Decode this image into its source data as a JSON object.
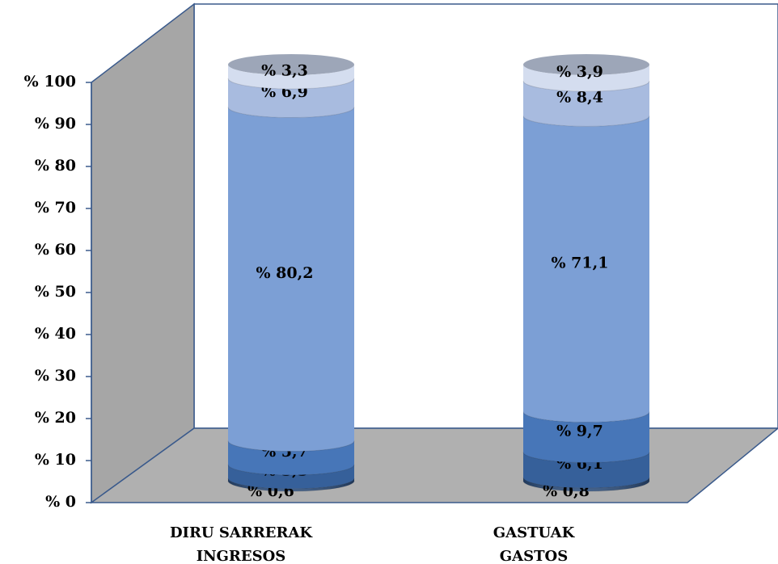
{
  "chart_data": {
    "type": "stacked-cylinder",
    "categories": [
      [
        "DIRU SARRERAK",
        "INGRESOS"
      ],
      [
        "GASTUAK",
        "GASTOS"
      ]
    ],
    "series": [
      {
        "color": "#2b4d7c",
        "values": [
          0.6,
          0.8
        ],
        "value_labels": [
          "% 0,6",
          "% 0,8"
        ]
      },
      {
        "color": "#36609a",
        "values": [
          3.3,
          6.1
        ],
        "value_labels": [
          "% 3,3",
          "% 6,1"
        ]
      },
      {
        "color": "#4776b8",
        "values": [
          5.7,
          9.7
        ],
        "value_labels": [
          "% 5,7",
          "% 9,7"
        ]
      },
      {
        "color": "#7c9fd5",
        "values": [
          80.2,
          71.1
        ],
        "value_labels": [
          "% 80,2",
          "% 71,1"
        ]
      },
      {
        "color": "#a8bbdf",
        "values": [
          6.9,
          8.4
        ],
        "value_labels": [
          "% 6,9",
          "% 8,4"
        ]
      },
      {
        "color": "#d4ddef",
        "values": [
          3.3,
          3.9
        ],
        "value_labels": [
          "% 3,3",
          "% 3,9"
        ]
      }
    ],
    "ylim": [
      0,
      100
    ],
    "yticks": [
      {
        "value": 0,
        "label": "% 0"
      },
      {
        "value": 10,
        "label": "% 10"
      },
      {
        "value": 20,
        "label": "% 20"
      },
      {
        "value": 30,
        "label": "% 30"
      },
      {
        "value": 40,
        "label": "% 40"
      },
      {
        "value": 50,
        "label": "% 50"
      },
      {
        "value": 60,
        "label": "% 60"
      },
      {
        "value": 70,
        "label": "% 70"
      },
      {
        "value": 80,
        "label": "% 80"
      },
      {
        "value": 90,
        "label": "% 90"
      },
      {
        "value": 100,
        "label": "% 100"
      }
    ]
  }
}
